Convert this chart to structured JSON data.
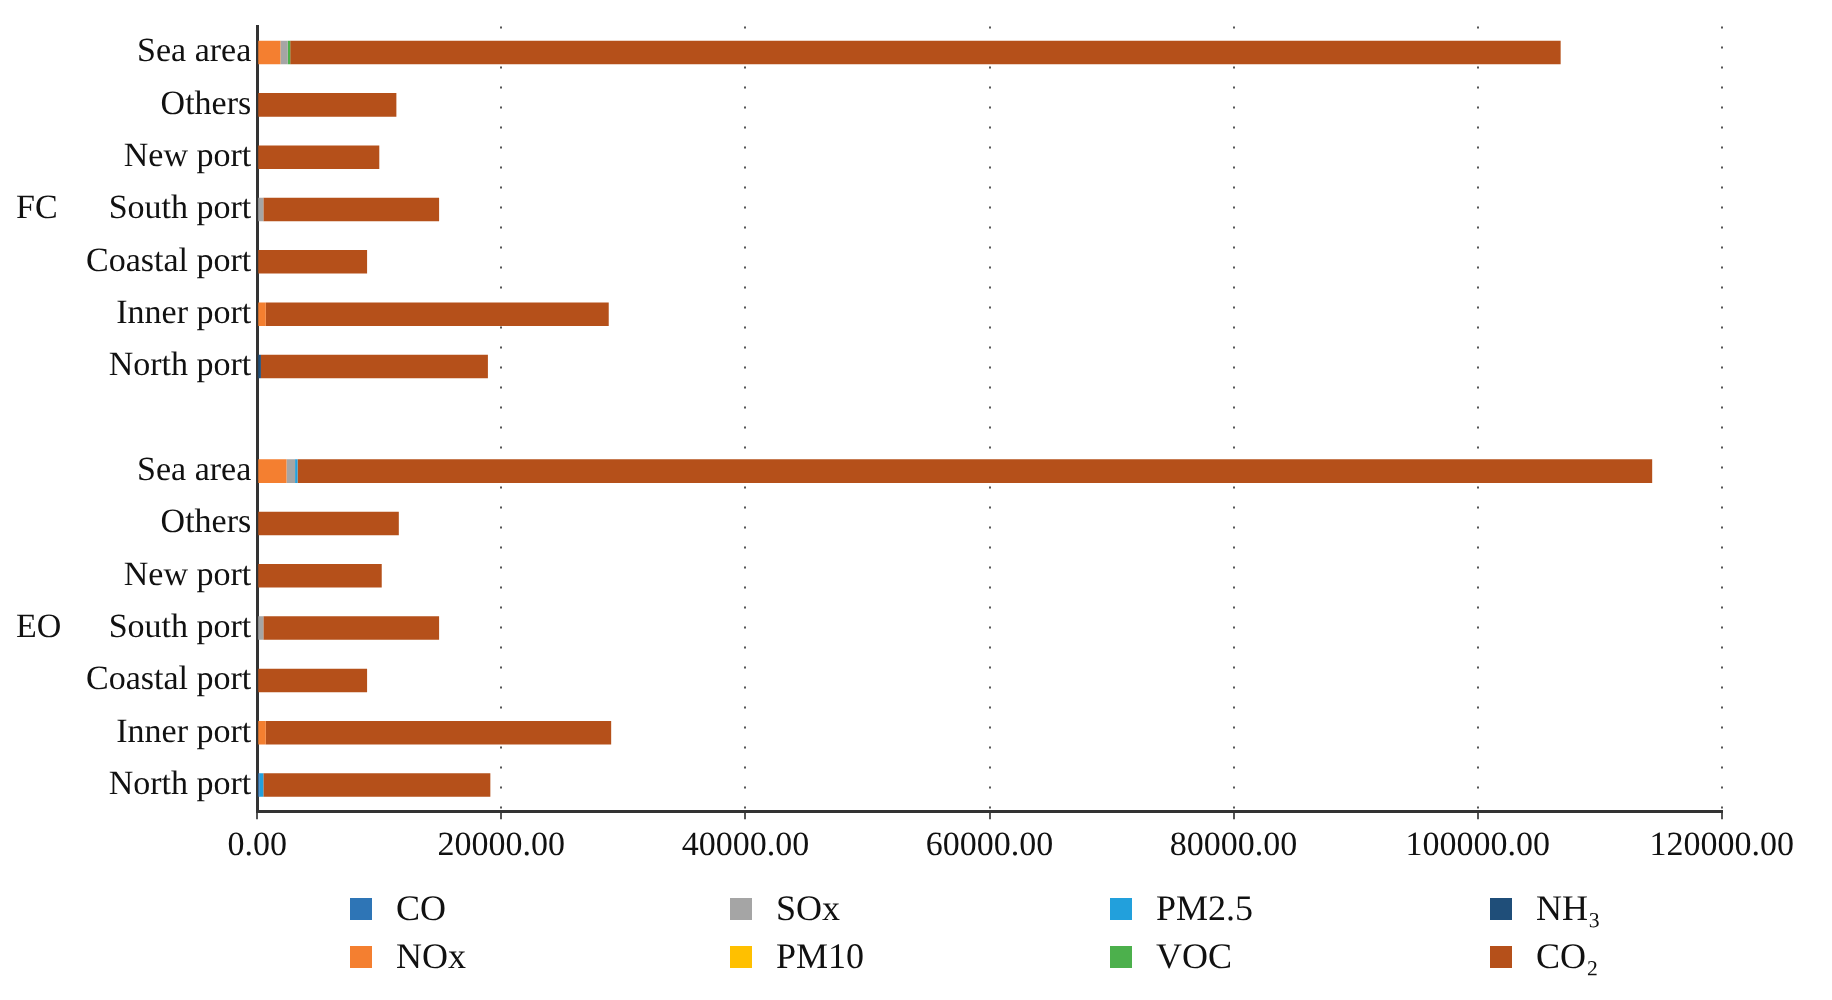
{
  "chart_data": {
    "type": "bar",
    "orientation": "horizontal",
    "stacked": true,
    "categories": [
      "Sea area",
      "Others",
      "New port",
      "South port",
      "Coastal port",
      "Inner port",
      "North port",
      null,
      "Sea area",
      "Others",
      "New port",
      "South port",
      "Coastal port",
      "Inner port",
      "North port"
    ],
    "series": [
      {
        "name": "CO",
        "color": "#2e75b6",
        "values": [
          null,
          null,
          null,
          null,
          null,
          null,
          null,
          null,
          null,
          null,
          null,
          null,
          null,
          null,
          200
        ]
      },
      {
        "name": "NOx",
        "color": "#f47f30",
        "values": [
          1900,
          null,
          null,
          null,
          null,
          700,
          null,
          null,
          2400,
          null,
          null,
          null,
          null,
          700,
          null
        ]
      },
      {
        "name": "SOx",
        "color": "#a5a5a5",
        "values": [
          600,
          null,
          null,
          500,
          null,
          null,
          null,
          null,
          700,
          null,
          null,
          500,
          null,
          null,
          null
        ]
      },
      {
        "name": "PM10",
        "color": "#ffc000",
        "values": [
          null,
          null,
          null,
          null,
          null,
          null,
          null,
          null,
          null,
          null,
          null,
          null,
          null,
          null,
          null
        ]
      },
      {
        "name": "PM2.5",
        "color": "#22a0dc",
        "values": [
          null,
          null,
          null,
          null,
          null,
          null,
          null,
          null,
          200,
          null,
          null,
          null,
          null,
          null,
          300
        ]
      },
      {
        "name": "VOC",
        "color": "#4cb04c",
        "values": [
          200,
          null,
          null,
          null,
          null,
          null,
          null,
          null,
          null,
          null,
          null,
          null,
          null,
          null,
          null
        ]
      },
      {
        "name": "NH₃",
        "color": "#1f4e79",
        "values": [
          null,
          null,
          null,
          null,
          null,
          null,
          300,
          null,
          null,
          null,
          null,
          null,
          null,
          null,
          null
        ]
      },
      {
        "name": "CO₂",
        "color": "#b5501a",
        "values": [
          104100,
          11400,
          10000,
          14400,
          9000,
          28100,
          18600,
          null,
          111000,
          11600,
          10200,
          14400,
          9000,
          28300,
          18600
        ]
      }
    ],
    "xlim": [
      0,
      120000
    ],
    "xticks": [
      {
        "value": 0,
        "label": "0.00"
      },
      {
        "value": 20000,
        "label": "20000.00"
      },
      {
        "value": 40000,
        "label": "40000.00"
      },
      {
        "value": 60000,
        "label": "60000.00"
      },
      {
        "value": 80000,
        "label": "80000.00"
      },
      {
        "value": 100000,
        "label": "100000.00"
      },
      {
        "value": 120000,
        "label": "120000.00"
      }
    ],
    "grid": "x",
    "legend": "bottom",
    "annotations": [
      "FC",
      "EO"
    ]
  }
}
